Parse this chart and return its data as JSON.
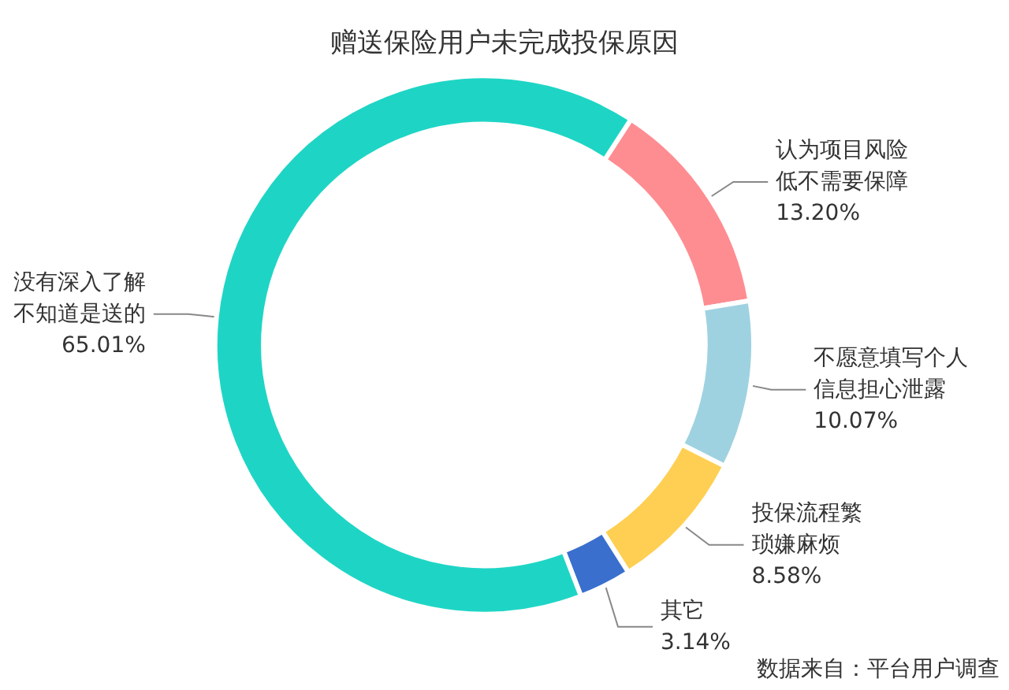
{
  "chart_data": {
    "type": "donut",
    "title": "赠送保险用户未完成投保原因",
    "categories": [
      "认为项目风险低不需要保障",
      "不愿意填写个人信息担心泄露",
      "投保流程繁琐嫌麻烦",
      "其它",
      "没有深入了解不知道是送的"
    ],
    "values": [
      13.2,
      10.07,
      8.58,
      3.14,
      65.01
    ],
    "value_labels": [
      "13.20%",
      "10.07%",
      "8.58%",
      "3.14%",
      "65.01%"
    ],
    "colors": [
      "#fe8d92",
      "#9fd2e1",
      "#fecf52",
      "#3a6fce",
      "#1ed5c5"
    ],
    "annotations": [
      "数据来自：平台用户调查"
    ],
    "legend": false
  }
}
